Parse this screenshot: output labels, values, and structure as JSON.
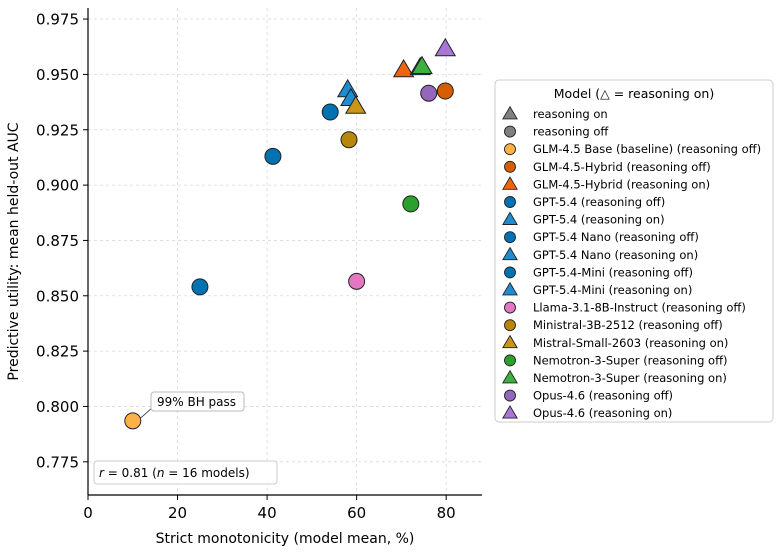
{
  "chart_data": {
    "type": "scatter",
    "xlabel": "Strict monotonicity (model mean, %)",
    "ylabel": "Predictive utility: mean held-out AUC",
    "xlim": [
      0,
      88
    ],
    "ylim": [
      0.76,
      0.98
    ],
    "x_ticks": [
      0,
      20,
      40,
      60,
      80
    ],
    "x_tick_labels": [
      "0",
      "20",
      "40",
      "60",
      "80"
    ],
    "y_ticks": [
      0.775,
      0.8,
      0.825,
      0.85,
      0.875,
      0.9,
      0.925,
      0.95,
      0.975
    ],
    "y_tick_labels": [
      "0.775",
      "0.800",
      "0.825",
      "0.850",
      "0.875",
      "0.900",
      "0.925",
      "0.950",
      "0.975"
    ],
    "grid": true,
    "legend_position": "right",
    "legend": {
      "title": "Model (△ = reasoning on)",
      "entries": [
        {
          "label": "reasoning on",
          "marker": "triangle",
          "color": "#808080"
        },
        {
          "label": "reasoning off",
          "marker": "circle",
          "color": "#808080"
        },
        {
          "label": "GLM-4.5 Base (baseline) (reasoning off)",
          "marker": "circle",
          "color": "#FDB147"
        },
        {
          "label": "GLM-4.5-Hybrid (reasoning off)",
          "marker": "circle",
          "color": "#D55E00"
        },
        {
          "label": "GLM-4.5-Hybrid (reasoning on)",
          "marker": "triangle",
          "color": "#F0640F"
        },
        {
          "label": "GPT-5.4 (reasoning off)",
          "marker": "circle",
          "color": "#0072B2"
        },
        {
          "label": "GPT-5.4 (reasoning on)",
          "marker": "triangle",
          "color": "#1F8CD0"
        },
        {
          "label": "GPT-5.4 Nano (reasoning off)",
          "marker": "circle",
          "color": "#0072B2"
        },
        {
          "label": "GPT-5.4 Nano (reasoning on)",
          "marker": "triangle",
          "color": "#1F8CD0"
        },
        {
          "label": "GPT-5.4-Mini (reasoning off)",
          "marker": "circle",
          "color": "#0072B2"
        },
        {
          "label": "GPT-5.4-Mini (reasoning on)",
          "marker": "triangle",
          "color": "#1F8CD0"
        },
        {
          "label": "Llama-3.1-8B-Instruct (reasoning off)",
          "marker": "circle",
          "color": "#E377C2"
        },
        {
          "label": "Ministral-3B-2512 (reasoning off)",
          "marker": "circle",
          "color": "#B8860B"
        },
        {
          "label": "Mistral-Small-2603 (reasoning on)",
          "marker": "triangle",
          "color": "#C9961A"
        },
        {
          "label": "Nemotron-3-Super (reasoning off)",
          "marker": "circle",
          "color": "#2CA02C"
        },
        {
          "label": "Nemotron-3-Super (reasoning on)",
          "marker": "triangle",
          "color": "#3DB03D"
        },
        {
          "label": "Opus-4.6 (reasoning off)",
          "marker": "circle",
          "color": "#9467BD"
        },
        {
          "label": "Opus-4.6 (reasoning on)",
          "marker": "triangle",
          "color": "#A877D6"
        }
      ]
    },
    "points": [
      {
        "model": "GLM-4.5 Base (baseline)",
        "reasoning": "off",
        "x": 10,
        "y": 0.7935,
        "marker": "circle",
        "color": "#FDB147"
      },
      {
        "model": "GPT-5.4-Mini",
        "reasoning": "off",
        "x": 25,
        "y": 0.854,
        "marker": "circle",
        "color": "#0072B2"
      },
      {
        "model": "GPT-5.4 Nano",
        "reasoning": "off",
        "x": 41.3,
        "y": 0.913,
        "marker": "circle",
        "color": "#0072B2"
      },
      {
        "model": "GPT-5.4",
        "reasoning": "off",
        "x": 54.1,
        "y": 0.933,
        "marker": "circle",
        "color": "#0072B2"
      },
      {
        "model": "Ministral-3B-2512",
        "reasoning": "off",
        "x": 58.3,
        "y": 0.9205,
        "marker": "circle",
        "color": "#B8860B"
      },
      {
        "model": "GPT-5.4",
        "reasoning": "on",
        "x": 58,
        "y": 0.943,
        "marker": "triangle",
        "color": "#1F8CD0"
      },
      {
        "model": "GPT-5.4-Mini",
        "reasoning": "on",
        "x": 58.7,
        "y": 0.939,
        "marker": "triangle",
        "color": "#1F8CD0"
      },
      {
        "model": "Mistral-Small-2603",
        "reasoning": "on",
        "x": 59.8,
        "y": 0.9355,
        "marker": "triangle",
        "color": "#C9961A"
      },
      {
        "model": "Llama-3.1-8B-Instruct",
        "reasoning": "off",
        "x": 60,
        "y": 0.8565,
        "marker": "circle",
        "color": "#E377C2"
      },
      {
        "model": "GLM-4.5-Hybrid",
        "reasoning": "on",
        "x": 70.5,
        "y": 0.952,
        "marker": "triangle",
        "color": "#F0640F"
      },
      {
        "model": "Nemotron-3-Super",
        "reasoning": "off",
        "x": 72.1,
        "y": 0.8915,
        "marker": "circle",
        "color": "#2CA02C"
      },
      {
        "model": "GPT-5.4 Nano",
        "reasoning": "on",
        "x": 74.2,
        "y": 0.953,
        "marker": "triangle",
        "color": "#1F8CD0"
      },
      {
        "model": "Nemotron-3-Super",
        "reasoning": "on",
        "x": 74.6,
        "y": 0.9535,
        "marker": "triangle",
        "color": "#3DB03D"
      },
      {
        "model": "Opus-4.6",
        "reasoning": "off",
        "x": 76.1,
        "y": 0.9415,
        "marker": "circle",
        "color": "#9467BD"
      },
      {
        "model": "GLM-4.5-Hybrid",
        "reasoning": "off",
        "x": 79.8,
        "y": 0.9425,
        "marker": "circle",
        "color": "#D55E00"
      },
      {
        "model": "Opus-4.6",
        "reasoning": "on",
        "x": 79.8,
        "y": 0.9615,
        "marker": "triangle",
        "color": "#A877D6"
      }
    ],
    "annotations": {
      "bh_label": "99% BH pass",
      "bh_point": {
        "x": 10,
        "y": 0.7935
      },
      "corr_r_symbol": "r",
      "corr_r_value": " = 0.81  (",
      "corr_n_symbol": "n",
      "corr_n_value": " = 16 models)"
    }
  }
}
